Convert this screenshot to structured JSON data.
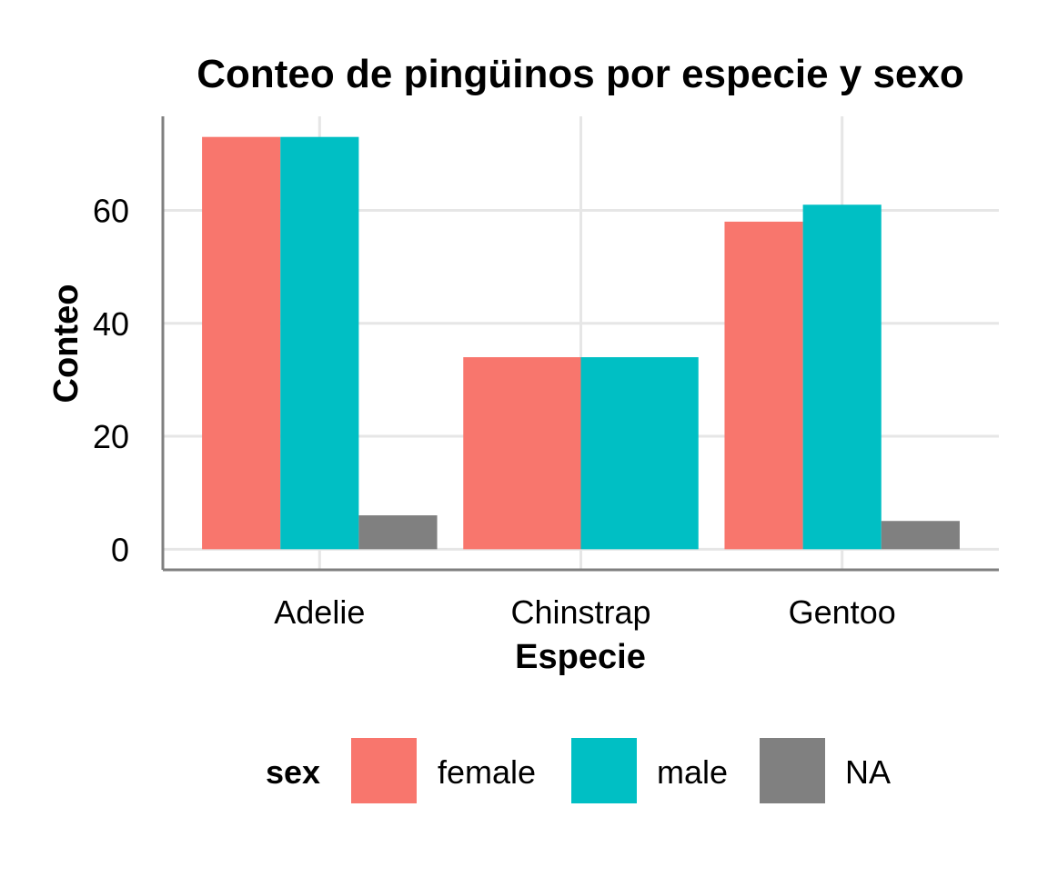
{
  "chart_data": {
    "type": "bar",
    "title": "Conteo de pingüinos por especie y sexo",
    "xlabel": "Especie",
    "ylabel": "Conteo",
    "categories": [
      "Adelie",
      "Chinstrap",
      "Gentoo"
    ],
    "series": [
      {
        "name": "female",
        "color": "#F8766D",
        "values": [
          73,
          34,
          58
        ]
      },
      {
        "name": "male",
        "color": "#00BFC4",
        "values": [
          73,
          34,
          61
        ]
      },
      {
        "name": "NA",
        "color": "#808080",
        "values": [
          6,
          null,
          5
        ]
      }
    ],
    "yticks": [
      0,
      20,
      40,
      60
    ],
    "ylim": [
      -3.65,
      76.65
    ],
    "grid": true,
    "legend": {
      "title": "sex",
      "position": "bottom",
      "entries": [
        "female",
        "male",
        "NA"
      ]
    }
  }
}
